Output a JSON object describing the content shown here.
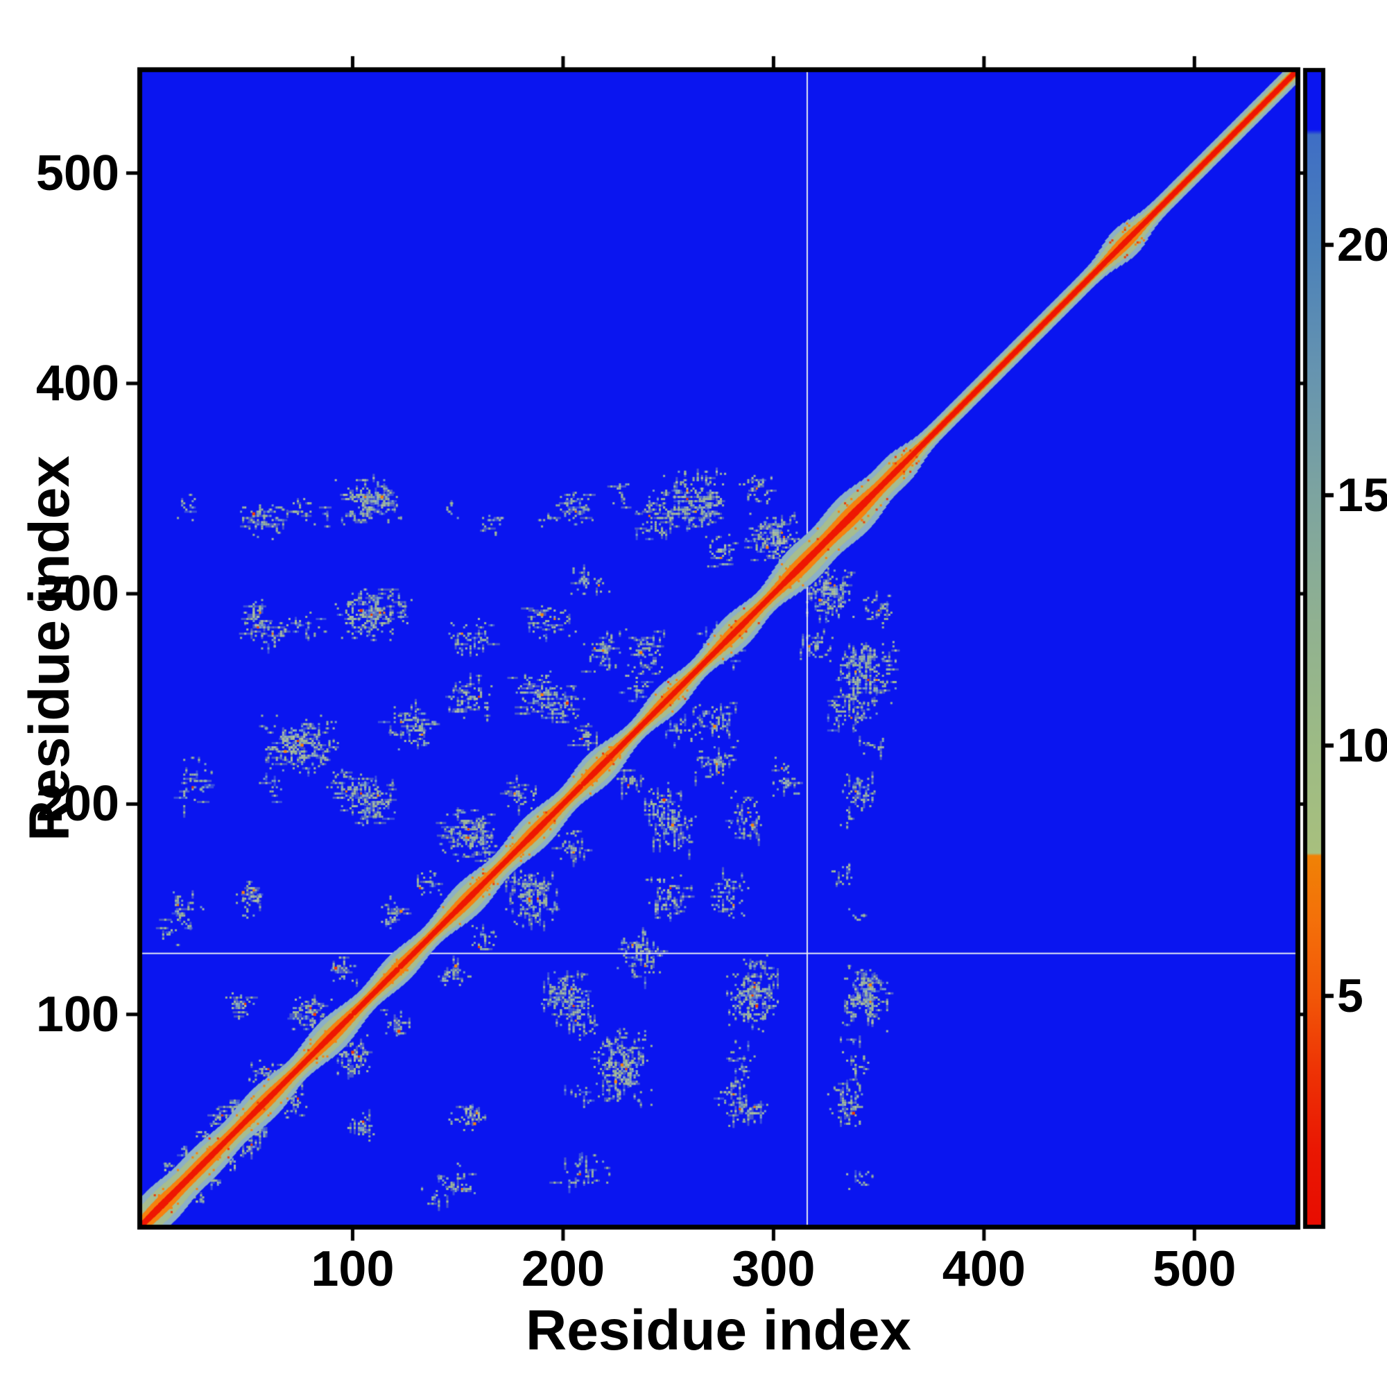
{
  "figure": {
    "background": "#ffffff",
    "kind": "protein residue-residue distance map (contact map) with colorbar"
  },
  "chart_data": {
    "type": "heatmap",
    "title": "",
    "xlabel": "Residue index",
    "ylabel": "Residue index",
    "axis_range": [
      0,
      548
    ],
    "x_ticks": [
      100,
      200,
      300,
      400,
      500
    ],
    "y_ticks": [
      100,
      200,
      300,
      400,
      500
    ],
    "x_tick_labels": [
      "100",
      "200",
      "300",
      "400",
      "500"
    ],
    "y_tick_labels": [
      "100",
      "200",
      "300",
      "400",
      "500"
    ],
    "grid": false,
    "legend_position": "none",
    "gridlines": {
      "vertical_residue": 316,
      "horizontal_residue": 129,
      "color": "#eef1f3"
    },
    "colorbar": {
      "range": [
        0.43,
        23.45
      ],
      "ticks": [
        5,
        10,
        15,
        20
      ],
      "tick_labels": [
        "5",
        "10",
        "15",
        "20"
      ],
      "gradient": [
        {
          "v": 0.43,
          "c": "#e80d01"
        },
        {
          "v": 2.0,
          "c": "#ea1803"
        },
        {
          "v": 3.5,
          "c": "#ee3305"
        },
        {
          "v": 5.0,
          "c": "#f25708"
        },
        {
          "v": 6.5,
          "c": "#f4700a"
        },
        {
          "v": 7.8,
          "c": "#f08206"
        },
        {
          "v": 7.85,
          "c": "#a8c07e"
        },
        {
          "v": 10.0,
          "c": "#9dbb85"
        },
        {
          "v": 12.5,
          "c": "#90b191"
        },
        {
          "v": 15.0,
          "c": "#7da4a0"
        },
        {
          "v": 17.5,
          "c": "#6694b0"
        },
        {
          "v": 20.0,
          "c": "#4a80ba"
        },
        {
          "v": 22.2,
          "c": "#3f6ec5"
        },
        {
          "v": 22.3,
          "c": "#0a15f0"
        },
        {
          "v": 23.45,
          "c": "#0a15f0"
        }
      ]
    },
    "colors": {
      "background_far": "#0a15f0",
      "diag_core_red": "#ee1603",
      "diag_orange": "#f5820e",
      "diag_sage": "#a6bd90",
      "diag_steel": "#8cb0c6",
      "speck_sage": "#a3bc93",
      "speck_sage_light": "#b2c4a1",
      "speck_steel": "#7fa5c4",
      "speck_orange": "#f5820e",
      "speck_red_orange": "#ee3b06",
      "frame": "#000000"
    },
    "diagonal": {
      "base_halfwidth_res": 4.3,
      "layer_fractions": {
        "steel": 1.0,
        "sage": 0.72,
        "orange": 0.4,
        "red": 0.17
      },
      "bulges": [
        {
          "c": 8,
          "h": 5.0,
          "w": 8
        },
        {
          "c": 30,
          "h": 4.0,
          "w": 10
        },
        {
          "c": 58,
          "h": 4.0,
          "w": 9
        },
        {
          "c": 90,
          "h": 4.0,
          "w": 9
        },
        {
          "c": 122,
          "h": 3.0,
          "w": 8
        },
        {
          "c": 155,
          "h": 4.0,
          "w": 9
        },
        {
          "c": 187,
          "h": 4.0,
          "w": 9
        },
        {
          "c": 217,
          "h": 4.0,
          "w": 8
        },
        {
          "c": 250,
          "h": 3.0,
          "w": 7
        },
        {
          "c": 282,
          "h": 4.0,
          "w": 8
        },
        {
          "c": 313,
          "h": 5.0,
          "w": 9
        },
        {
          "c": 338,
          "h": 6.0,
          "w": 10
        },
        {
          "c": 360,
          "h": 3.0,
          "w": 6
        },
        {
          "c": 467,
          "h": 3.5,
          "w": 6
        }
      ]
    },
    "contact_clusters_note": "Symmetric off-diagonal contact clusters; each entry [cx, cy, rx, ry, density(s|m|d), n_orange] in residue units, mirrored across the diagonal.",
    "contact_clusters": [
      [
        12,
        26,
        3,
        3,
        "m",
        0
      ],
      [
        20,
        34,
        3,
        3,
        "m",
        0
      ],
      [
        28,
        42,
        3,
        3,
        "m",
        0
      ],
      [
        36,
        50,
        3,
        3,
        "m",
        0
      ],
      [
        44,
        58,
        3,
        3,
        "m",
        0
      ],
      [
        40,
        52,
        6,
        5,
        "m",
        1
      ],
      [
        58,
        72,
        7,
        6,
        "m",
        1
      ],
      [
        80,
        100,
        9,
        8,
        "d",
        2
      ],
      [
        95,
        122,
        7,
        7,
        "m",
        1
      ],
      [
        120,
        148,
        7,
        7,
        "m",
        1
      ],
      [
        135,
        162,
        7,
        6,
        "m",
        1
      ],
      [
        180,
        205,
        8,
        7,
        "m",
        1
      ],
      [
        210,
        232,
        7,
        6,
        "m",
        1
      ],
      [
        235,
        255,
        7,
        6,
        "m",
        0
      ],
      [
        22,
        342,
        5,
        8,
        "s",
        0
      ],
      [
        56,
        336,
        9,
        9,
        "m",
        1
      ],
      [
        64,
        335,
        5,
        6,
        "s",
        0
      ],
      [
        78,
        339,
        13,
        6,
        "s",
        0
      ],
      [
        108,
        343,
        14,
        11,
        "d",
        2
      ],
      [
        148,
        341,
        4,
        5,
        "s",
        0
      ],
      [
        165,
        332,
        6,
        8,
        "s",
        0
      ],
      [
        192,
        336,
        5,
        5,
        "s",
        0
      ],
      [
        205,
        341,
        9,
        9,
        "m",
        1
      ],
      [
        227,
        348,
        7,
        6,
        "s",
        0
      ],
      [
        245,
        336,
        9,
        12,
        "m",
        1
      ],
      [
        262,
        344,
        15,
        13,
        "d",
        3
      ],
      [
        275,
        320,
        8,
        8,
        "m",
        1
      ],
      [
        292,
        350,
        9,
        6,
        "m",
        1
      ],
      [
        300,
        327,
        12,
        11,
        "d",
        3
      ],
      [
        53,
        288,
        7,
        11,
        "m",
        2
      ],
      [
        63,
        282,
        6,
        8,
        "m",
        1
      ],
      [
        77,
        285,
        12,
        6,
        "s",
        0
      ],
      [
        110,
        290,
        16,
        12,
        "d",
        4
      ],
      [
        156,
        278,
        10,
        9,
        "m",
        1
      ],
      [
        194,
        287,
        11,
        8,
        "m",
        2
      ],
      [
        213,
        305,
        9,
        7,
        "m",
        1
      ],
      [
        218,
        272,
        9,
        9,
        "m",
        2
      ],
      [
        240,
        272,
        9,
        11,
        "m",
        1
      ],
      [
        275,
        278,
        9,
        7,
        "m",
        1
      ],
      [
        25,
        210,
        9,
        13,
        "s",
        1
      ],
      [
        75,
        228,
        17,
        13,
        "d",
        3
      ],
      [
        128,
        237,
        12,
        11,
        "m",
        2
      ],
      [
        156,
        250,
        11,
        10,
        "m",
        1
      ],
      [
        190,
        252,
        13,
        11,
        "m",
        1
      ],
      [
        200,
        247,
        9,
        9,
        "m",
        1
      ],
      [
        60,
        208,
        6,
        7,
        "s",
        0
      ],
      [
        95,
        208,
        6,
        8,
        "m",
        1
      ],
      [
        107,
        202,
        12,
        11,
        "d",
        2
      ],
      [
        155,
        185,
        13,
        12,
        "d",
        3
      ],
      [
        20,
        150,
        8,
        8,
        "m",
        1
      ],
      [
        11,
        139,
        5,
        7,
        "s",
        0
      ],
      [
        46,
        105,
        7,
        7,
        "m",
        1
      ],
      [
        50,
        155,
        7,
        10,
        "m",
        2
      ]
    ]
  }
}
